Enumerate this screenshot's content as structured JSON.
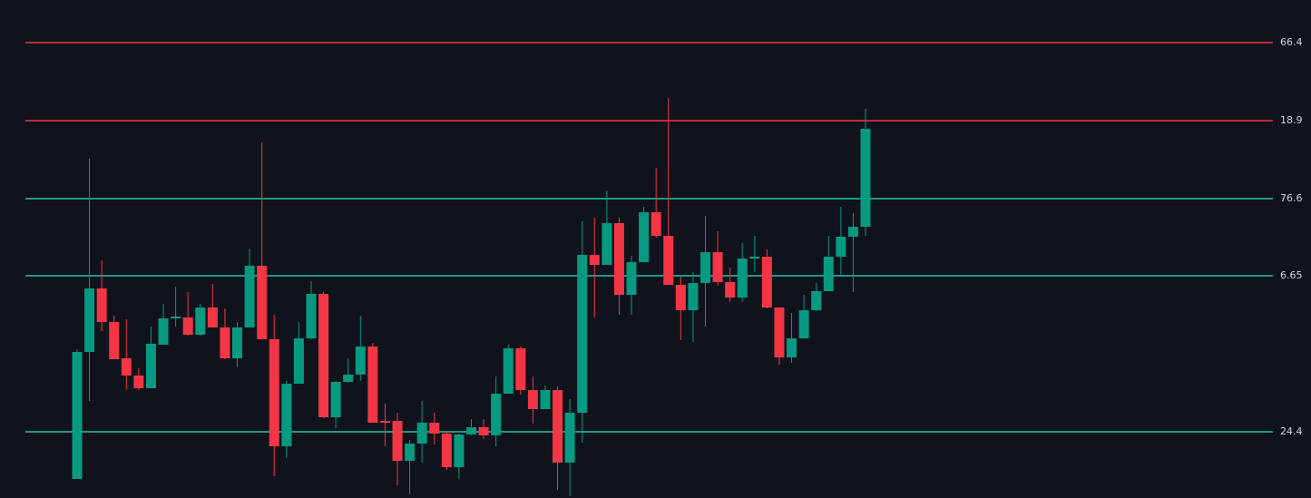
{
  "chart_data": {
    "type": "candlestick",
    "ylim": [
      0,
      549
    ],
    "up_color": "#089981",
    "down_color": "#f23645",
    "levels": [
      {
        "value": 502,
        "label": "66.4",
        "color": "#f23645"
      },
      {
        "value": 416,
        "label": "18.9",
        "color": "#f23645"
      },
      {
        "value": 330,
        "label": "76.6",
        "color": "#26c6a6"
      },
      {
        "value": 245,
        "label": "6.65",
        "color": "#26c6a6"
      },
      {
        "value": 73,
        "label": "24.4",
        "color": "#26c6a6"
      }
    ],
    "open": [
      21,
      161,
      231,
      194,
      154,
      135,
      121,
      169,
      198,
      199,
      180,
      210,
      188,
      154,
      188,
      256,
      175,
      57,
      126,
      176,
      225,
      89,
      128,
      136,
      167,
      85,
      85,
      41,
      60,
      83,
      71,
      34,
      70,
      78,
      69,
      115,
      165,
      119,
      98,
      119,
      39,
      94,
      268,
      257,
      303,
      224,
      260,
      315,
      289,
      235,
      207,
      237,
      271,
      238,
      221,
      264,
      266,
      210,
      155,
      176,
      207,
      228,
      266,
      288,
      299
    ],
    "high": [
      164,
      374,
      262,
      201,
      197,
      143,
      189,
      214,
      233,
      227,
      214,
      236,
      209,
      194,
      275,
      392,
      202,
      129,
      194,
      239,
      227,
      129,
      154,
      201,
      171,
      104,
      94,
      64,
      107,
      94,
      73,
      71,
      87,
      87,
      134,
      169,
      167,
      134,
      124,
      123,
      109,
      305,
      309,
      339,
      309,
      267,
      321,
      364,
      441,
      244,
      249,
      311,
      294,
      254,
      281,
      289,
      274,
      210,
      204,
      224,
      237,
      289,
      321,
      314,
      429
    ],
    "low": [
      21,
      107,
      184,
      153,
      119,
      119,
      121,
      169,
      189,
      179,
      179,
      188,
      153,
      144,
      188,
      175,
      24,
      44,
      126,
      175,
      88,
      77,
      127,
      129,
      83,
      57,
      14,
      4,
      39,
      59,
      31,
      21,
      69,
      65,
      57,
      115,
      114,
      82,
      98,
      9,
      2,
      61,
      199,
      257,
      202,
      202,
      260,
      287,
      235,
      174,
      172,
      189,
      234,
      216,
      216,
      249,
      209,
      147,
      149,
      176,
      206,
      228,
      244,
      227,
      289
    ],
    "close": [
      161,
      231,
      194,
      153,
      135,
      121,
      170,
      198,
      200,
      180,
      210,
      188,
      154,
      188,
      256,
      175,
      57,
      126,
      176,
      225,
      89,
      128,
      136,
      167,
      83,
      83,
      41,
      60,
      83,
      71,
      34,
      70,
      78,
      69,
      115,
      165,
      119,
      98,
      119,
      39,
      94,
      268,
      257,
      303,
      224,
      260,
      315,
      289,
      235,
      207,
      237,
      271,
      238,
      221,
      264,
      266,
      210,
      155,
      176,
      207,
      228,
      266,
      288,
      299,
      407
    ]
  }
}
